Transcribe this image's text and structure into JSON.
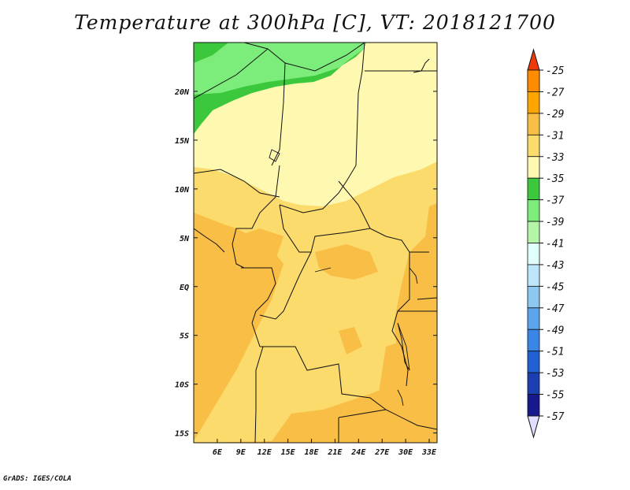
{
  "title": "Temperature at 300hPa [C], VT: 2018121700",
  "credit": "GrADS: IGES/COLA",
  "map": {
    "lon_range": [
      3,
      34
    ],
    "lat_range": [
      -16,
      25
    ],
    "lat_ticks": [
      "20N",
      "15N",
      "10N",
      "5N",
      "EQ",
      "5S",
      "10S",
      "15S"
    ],
    "lat_tick_values": [
      20,
      15,
      10,
      5,
      0,
      -5,
      -10,
      -15
    ],
    "lon_ticks": [
      "6E",
      "9E",
      "12E",
      "15E",
      "18E",
      "21E",
      "24E",
      "27E",
      "30E",
      "33E"
    ],
    "lon_tick_values": [
      6,
      9,
      12,
      15,
      18,
      21,
      24,
      27,
      30,
      33
    ]
  },
  "colorbar": {
    "labels": [
      "-25",
      "-27",
      "-29",
      "-31",
      "-33",
      "-35",
      "-37",
      "-39",
      "-41",
      "-43",
      "-45",
      "-47",
      "-49",
      "-51",
      "-53",
      "-55",
      "-57"
    ],
    "colors": [
      "#ff4500",
      "#ff8c00",
      "#ffa500",
      "#f9be45",
      "#fbdb6c",
      "#fff8b0",
      "#3cc83c",
      "#7ced7a",
      "#b4f5a8",
      "#e0fffa",
      "#bde6fa",
      "#8cc8f0",
      "#5aa6ec",
      "#3a86e6",
      "#1f60d2",
      "#1b3fb0",
      "#16188c"
    ],
    "top_arrow_color": "#ee3a0b",
    "bottom_arrow_color": "#e0deff"
  },
  "field_colors": {
    "green_dark": "#3cc83c",
    "green_light": "#7ced7a",
    "pale_yellow": "#fff8b0",
    "yellow": "#fbdb6c",
    "orange": "#f9be45"
  }
}
